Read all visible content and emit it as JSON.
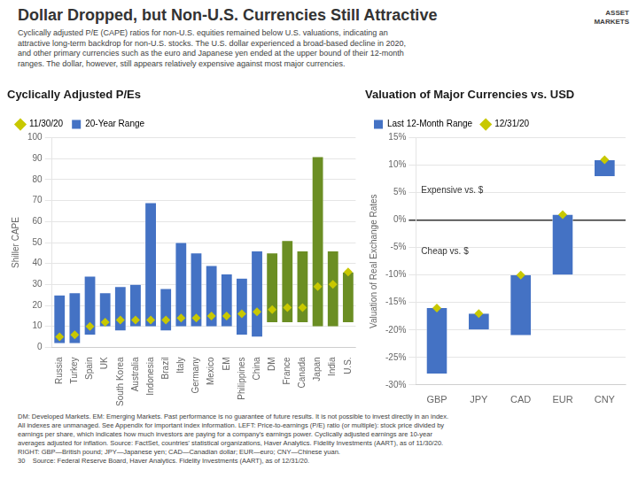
{
  "title": "Dollar Dropped, but Non-U.S. Currencies Still Attractive",
  "subtitle": "Cyclically adjusted P/E (CAPE) ratios for non-U.S. equities remained below U.S. valuations, indicating an\nattractive long-term backdrop for non-U.S. stocks. The U.S. dollar experienced a broad-based decline in 2020,\nand other primary currencies such as the euro and Japanese yen ended at the upper bound of their 12-month\nranges. The dollar, however, still appears relatively expensive against most major currencies.",
  "side_label": "ASSET\nMARKETS",
  "footer": "DM: Developed Markets. EM: Emerging Markets. Past performance is no guarantee of future results. It is not possible to invest directly in an index.\nAll indexes are unmanaged. See Appendix for important index information. LEFT: Price-to-earnings (P/E) ratio (or multiple): stock price divided by\nearnings per share, which indicates how much investors are paying for a company's earnings power. Cyclically adjusted earnings are 10-year\naverages adjusted for inflation. Source: FactSet, countries' statistical organizations, Haver Analytics. Fidelity Investments (AART), as of 11/30/20.\nRIGHT: GBP—British pound; JPY—Japanese yen; CAD—Canadian dollar; EUR—euro; CNY—Chinese yuan.\n30    Source: Federal Reserve Board, Haver Analytics. Fidelity Investments (AART), as of 12/31/20.",
  "chart_data": [
    {
      "type": "bar",
      "title": "Cyclically Adjusted P/Es",
      "ylabel": "Shiller CAPE",
      "categories": [
        "Russia",
        "Turkey",
        "Spain",
        "UK",
        "South Korea",
        "Australia",
        "Indonesia",
        "Brazil",
        "Italy",
        "Germany",
        "Mexico",
        "EM",
        "Philippines",
        "China",
        "DM",
        "France",
        "Canada",
        "Japan",
        "India",
        "U.S."
      ],
      "series": [
        {
          "name": "11/30/20",
          "type": "scatter",
          "marker": "diamond",
          "color": "#c8c800",
          "values": [
            5,
            6,
            10,
            12,
            13,
            13,
            13,
            13,
            14,
            14,
            15,
            15,
            16,
            17,
            18,
            19,
            19,
            29,
            30,
            36
          ]
        },
        {
          "name": "20-Year Range",
          "type": "bar",
          "color": "#4472c4",
          "colors": [
            "#4472c4",
            "#4472c4",
            "#4472c4",
            "#4472c4",
            "#4472c4",
            "#4472c4",
            "#4472c4",
            "#4472c4",
            "#4472c4",
            "#4472c4",
            "#4472c4",
            "#4472c4",
            "#4472c4",
            "#4472c4",
            "#6b8e23",
            "#6b8e23",
            "#6b8e23",
            "#6b8e23",
            "#6b8e23",
            "#6b8e23"
          ],
          "values": [
            [
              2,
              25
            ],
            [
              2,
              26
            ],
            [
              6,
              34
            ],
            [
              10,
              26
            ],
            [
              8,
              29
            ],
            [
              10,
              30
            ],
            [
              10,
              69
            ],
            [
              8,
              28
            ],
            [
              10,
              50
            ],
            [
              10,
              45
            ],
            [
              10,
              39
            ],
            [
              10,
              35
            ],
            [
              6,
              33
            ],
            [
              5,
              46
            ],
            [
              12,
              45
            ],
            [
              12,
              51
            ],
            [
              12,
              46
            ],
            [
              10,
              91
            ],
            [
              10,
              46
            ],
            [
              12,
              36
            ]
          ]
        }
      ],
      "ylim": [
        0,
        100
      ],
      "yticks": [
        0,
        10,
        20,
        30,
        40,
        50,
        60,
        70,
        80,
        90,
        100
      ],
      "grid": true,
      "legend": "upper left"
    },
    {
      "type": "bar",
      "title": "Valuation of Major Currencies vs. USD",
      "ylabel": "Valuation of Real Exchange Rates",
      "categories": [
        "GBP",
        "JPY",
        "CAD",
        "EUR",
        "CNY"
      ],
      "series": [
        {
          "name": "Last 12-Month Range",
          "type": "bar",
          "color": "#4472c4",
          "values": [
            [
              -28,
              -16
            ],
            [
              -20,
              -17
            ],
            [
              -21,
              -10
            ],
            [
              -10,
              1
            ],
            [
              8,
              11
            ]
          ]
        },
        {
          "name": "12/31/20",
          "type": "scatter",
          "marker": "diamond",
          "color": "#c8c800",
          "values": [
            -16,
            -17,
            -10,
            1,
            11
          ]
        }
      ],
      "ylim": [
        -30,
        15
      ],
      "yticks": [
        {
          "value": -30,
          "label": "-30%"
        },
        {
          "value": -25,
          "label": "-25%"
        },
        {
          "value": -20,
          "label": "-20%"
        },
        {
          "value": -15,
          "label": "-15%"
        },
        {
          "value": -10,
          "label": "-10%"
        },
        {
          "value": -5,
          "label": "-5%"
        },
        {
          "value": 0,
          "label": "0%"
        },
        {
          "value": 5,
          "label": "5%"
        },
        {
          "value": 10,
          "label": "10%"
        },
        {
          "value": 15,
          "label": "15%"
        }
      ],
      "grid": true,
      "legend": "upper left",
      "annotations": [
        {
          "text": "Expensive vs. $",
          "y": 4.5
        },
        {
          "text": "Cheap vs. $",
          "y": -6.5
        }
      ]
    }
  ]
}
